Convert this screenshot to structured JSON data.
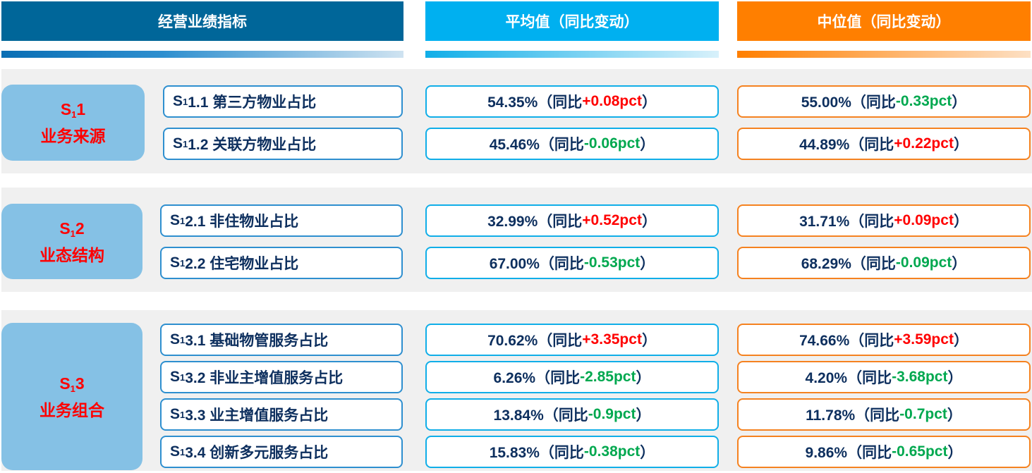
{
  "header": {
    "col1": "经营业绩指标",
    "col2": "平均值（同比变动）",
    "col3": "中位值（同比变动）"
  },
  "colors": {
    "col1": "#006699",
    "col2": "#00b0f0",
    "col3": "#ff7f00",
    "up": "#ff0000",
    "down": "#00a84f"
  },
  "groups": [
    {
      "code": "S",
      "sub": "1",
      "num": "1",
      "name": "业务来源",
      "rows": [
        {
          "code": "S",
          "sub": "1",
          "label": "1.1 第三方物业占比",
          "avg": "54.35%（同比",
          "avg_chg": "+0.08pct",
          "med": "55.00%（同比",
          "med_chg": "-0.33pct",
          "close": "）"
        },
        {
          "code": "S",
          "sub": "1",
          "label": "1.2 关联方物业占比",
          "avg": "45.46%（同比",
          "avg_chg": "-0.06pct",
          "med": "44.89%（同比",
          "med_chg": "+0.22pct",
          "close": "）"
        }
      ]
    },
    {
      "code": "S",
      "sub": "1",
      "num": "2",
      "name": "业态结构",
      "rows": [
        {
          "code": "S",
          "sub": "1",
          "label": "2.1 非住物业占比",
          "avg": "32.99%（同比",
          "avg_chg": "+0.52pct",
          "med": "31.71%（同比",
          "med_chg": "+0.09pct",
          "close": "）"
        },
        {
          "code": "S",
          "sub": "1",
          "label": "2.2 住宅物业占比",
          "avg": "67.00%（同比",
          "avg_chg": "-0.53pct",
          "med": "68.29%（同比",
          "med_chg": "-0.09pct",
          "close": "）"
        }
      ]
    },
    {
      "code": "S",
      "sub": "1",
      "num": "3",
      "name": "业务组合",
      "rows": [
        {
          "code": "S",
          "sub": "1",
          "label": "3.1 基础物管服务占比",
          "avg": "70.62%（同比",
          "avg_chg": "+3.35pct",
          "med": "74.66%（同比",
          "med_chg": "+3.59pct",
          "close": "）"
        },
        {
          "code": "S",
          "sub": "1",
          "label": "3.2 非业主增值服务占比",
          "avg": "6.26%（同比",
          "avg_chg": "-2.85pct",
          "med": "4.20%（同比",
          "med_chg": "-3.68pct",
          "close": "）"
        },
        {
          "code": "S",
          "sub": "1",
          "label": "3.3 业主增值服务占比",
          "avg": "13.84%（同比",
          "avg_chg": "-0.9pct",
          "med": "11.78%（同比",
          "med_chg": "-0.7pct",
          "close": "）"
        },
        {
          "code": "S",
          "sub": "1",
          "label": "3.4 创新多元服务占比",
          "avg": "15.83%（同比",
          "avg_chg": "-0.38pct",
          "med": "9.86%（同比",
          "med_chg": "-0.65pct",
          "close": "）"
        }
      ]
    }
  ]
}
